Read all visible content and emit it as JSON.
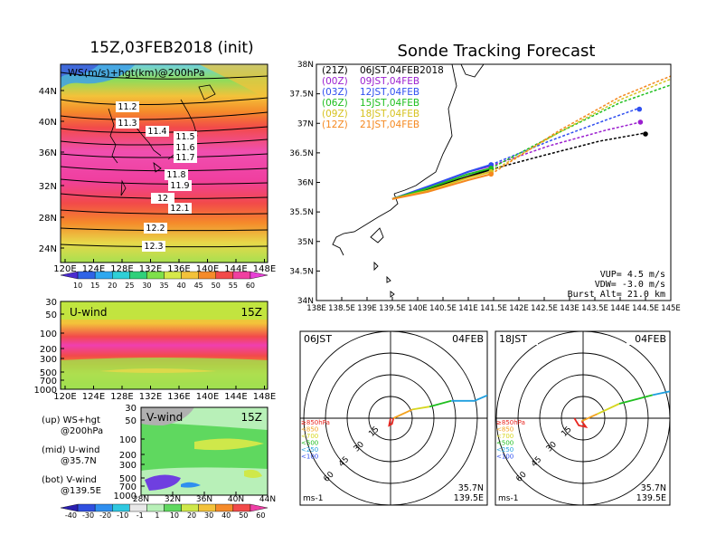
{
  "colors": {
    "ws_scale": [
      "#4b2bd0",
      "#2f63e6",
      "#2fa8ef",
      "#2fcfd6",
      "#2fd07a",
      "#7ee04a",
      "#d6e84a",
      "#f3c23a",
      "#f58a2a",
      "#f24a4a",
      "#f03fa0",
      "#e83fd6"
    ],
    "vwind_scale": [
      "#2a1fb0",
      "#2f4fe0",
      "#2f8fef",
      "#2fc8e0",
      "#e8e8e8",
      "#b8f0b8",
      "#5fd85f",
      "#cfe84a",
      "#f3c23a",
      "#f58a2a",
      "#f24a4a",
      "#ee3fa6"
    ],
    "series": [
      "#000000",
      "#9b1fcf",
      "#2f4ff0",
      "#1fbf1f",
      "#d6c21f",
      "#f5881f"
    ],
    "hodo_levels": [
      "#e8251f",
      "#f3a21f",
      "#d6d61f",
      "#1fbf1f",
      "#1f9fdf",
      "#2f4ff0"
    ]
  },
  "left": {
    "main_title": "15Z,03FEB2018 (init)",
    "ws_panel": {
      "label": "WS(m/s)+hgt(km)@200hPa",
      "lat_ticks": [
        "44N",
        "40N",
        "36N",
        "32N",
        "28N",
        "24N"
      ],
      "lon_ticks": [
        "120E",
        "124E",
        "128E",
        "132E",
        "136E",
        "140E",
        "144E",
        "148E"
      ],
      "contour_labels": [
        "11.2",
        "11.3",
        "11.4",
        "11.5",
        "11.6",
        "11.7",
        "11.8",
        "11.9",
        "12",
        "12.1",
        "12.2",
        "12.3"
      ],
      "colorbar_ticks": [
        "10",
        "15",
        "20",
        "25",
        "30",
        "35",
        "40",
        "45",
        "50",
        "55",
        "60"
      ]
    },
    "u_panel": {
      "label": "U-wind",
      "time": "15Z",
      "p_ticks": [
        "30",
        "50",
        "100",
        "200",
        "300",
        "500",
        "700",
        "1000"
      ],
      "lon_ticks": [
        "120E",
        "124E",
        "128E",
        "132E",
        "136E",
        "140E",
        "144E",
        "148E"
      ]
    },
    "v_panel": {
      "label": "V-wind",
      "time": "15Z",
      "p_ticks": [
        "30",
        "50",
        "100",
        "200",
        "300",
        "500",
        "700",
        "1000"
      ],
      "lat_ticks": [
        "28N",
        "32N",
        "36N",
        "40N",
        "44N"
      ]
    },
    "legend_notes": [
      "(up) WS+hgt",
      "@200hPa",
      "(mid) U-wind",
      "@35.7N",
      "(bot) V-wind",
      "@139.5E"
    ],
    "bottom_colorbar_ticks": [
      "-40",
      "-30",
      "-20",
      "-10",
      "-1",
      "1",
      "10",
      "20",
      "30",
      "40",
      "50",
      "60"
    ]
  },
  "chart_data": [
    {
      "type": "line",
      "title": "Sonde Tracking Forecast",
      "xlim": [
        138,
        145
      ],
      "ylim": [
        34,
        38
      ],
      "x_ticks": [
        "138E",
        "138.5E",
        "139E",
        "139.5E",
        "140E",
        "140.5E",
        "141E",
        "141.5E",
        "142E",
        "142.5E",
        "143E",
        "143.5E",
        "144E",
        "144.5E",
        "145E"
      ],
      "y_ticks": [
        "38N",
        "37.5N",
        "37N",
        "36.5N",
        "36N",
        "35.5N",
        "35N",
        "34.5N",
        "34N"
      ],
      "legend": [
        {
          "code": "(21Z)",
          "time": "06JST,04FEB2018"
        },
        {
          "code": "(00Z)",
          "time": "09JST,04FEB"
        },
        {
          "code": "(03Z)",
          "time": "12JST,04FEB"
        },
        {
          "code": "(06Z)",
          "time": "15JST,04FEB"
        },
        {
          "code": "(09Z)",
          "time": "18JST,04FEB"
        },
        {
          "code": "(12Z)",
          "time": "21JST,04FEB"
        }
      ],
      "series": [
        {
          "name": "(21Z)",
          "ascent": [
            [
              139.5,
              35.72
            ],
            [
              140.2,
              35.88
            ],
            [
              141.0,
              36.1
            ],
            [
              141.45,
              36.22
            ]
          ],
          "descent": [
            [
              141.45,
              36.22
            ],
            [
              142.5,
              36.46
            ],
            [
              143.6,
              36.7
            ],
            [
              144.45,
              36.83
            ]
          ],
          "end": [
            144.5,
            36.82
          ]
        },
        {
          "name": "(00Z)",
          "ascent": [
            [
              139.5,
              35.72
            ],
            [
              140.2,
              35.92
            ],
            [
              141.0,
              36.18
            ],
            [
              141.45,
              36.28
            ]
          ],
          "descent": [
            [
              141.45,
              36.28
            ],
            [
              142.6,
              36.62
            ],
            [
              143.7,
              36.88
            ],
            [
              144.4,
              37.02
            ]
          ],
          "end": [
            144.4,
            37.02
          ]
        },
        {
          "name": "(03Z)",
          "ascent": [
            [
              139.5,
              35.72
            ],
            [
              140.2,
              35.93
            ],
            [
              141.0,
              36.18
            ],
            [
              141.45,
              36.3
            ]
          ],
          "descent": [
            [
              141.45,
              36.3
            ],
            [
              142.6,
              36.7
            ],
            [
              143.7,
              37.05
            ],
            [
              144.35,
              37.25
            ]
          ],
          "end": [
            144.38,
            37.24
          ]
        },
        {
          "name": "(06Z)",
          "ascent": [
            [
              139.5,
              35.72
            ],
            [
              140.2,
              35.9
            ],
            [
              141.0,
              36.14
            ],
            [
              141.45,
              36.24
            ]
          ],
          "descent": [
            [
              141.45,
              36.24
            ],
            [
              142.8,
              36.85
            ],
            [
              144.0,
              37.35
            ],
            [
              145.0,
              37.65
            ]
          ]
        },
        {
          "name": "(09Z)",
          "ascent": [
            [
              139.5,
              35.72
            ],
            [
              140.2,
              35.86
            ],
            [
              141.0,
              36.08
            ],
            [
              141.45,
              36.18
            ]
          ],
          "descent": [
            [
              141.45,
              36.18
            ],
            [
              142.8,
              36.85
            ],
            [
              144.0,
              37.4
            ],
            [
              145.0,
              37.75
            ]
          ]
        },
        {
          "name": "(12Z)",
          "ascent": [
            [
              139.5,
              35.72
            ],
            [
              140.2,
              35.84
            ],
            [
              141.0,
              36.04
            ],
            [
              141.45,
              36.14
            ]
          ],
          "descent": [
            [
              141.45,
              36.14
            ],
            [
              142.8,
              36.88
            ],
            [
              144.0,
              37.45
            ],
            [
              145.0,
              37.8
            ]
          ]
        }
      ],
      "annotations": [
        "VUP= 4.5 m/s",
        "VDW= -3.0 m/s",
        "Burst Alt= 21.0 km"
      ]
    },
    {
      "type": "hodograph",
      "left_label": "06JST",
      "right_label": "04FEB",
      "rings": [
        "15",
        "30",
        "45",
        "60"
      ],
      "levels": [
        "≥850hPa",
        "<850",
        "<700",
        "<500",
        "<250",
        "<100"
      ],
      "unit": "ms-1",
      "location": [
        "35.7N",
        "139.5E"
      ],
      "paths": [
        [
          [
            0,
            0
          ],
          [
            -1,
            -5
          ],
          [
            1,
            -4
          ],
          [
            2,
            0
          ]
        ],
        [
          [
            2,
            0
          ],
          [
            15,
            6
          ]
        ],
        [
          [
            15,
            6
          ],
          [
            27,
            8
          ]
        ],
        [
          [
            27,
            8
          ],
          [
            42,
            12
          ]
        ],
        [
          [
            42,
            12
          ],
          [
            58,
            12
          ],
          [
            72,
            18
          ]
        ],
        [
          [
            72,
            18
          ],
          [
            78,
            22
          ]
        ]
      ]
    },
    {
      "type": "hodograph",
      "left_label": "18JST",
      "right_label": "04FEB",
      "rings": [
        "15",
        "30",
        "45",
        "60"
      ],
      "levels": [
        "≥850hPa",
        "<850",
        "<700",
        "<500",
        "<250",
        "<100"
      ],
      "unit": "ms-1",
      "location": [
        "35.7N",
        "139.5E"
      ],
      "paths": [
        [
          [
            -6,
            0
          ],
          [
            -3,
            -5
          ],
          [
            2,
            -6
          ],
          [
            -1,
            -2
          ]
        ],
        [
          [
            -1,
            -2
          ],
          [
            10,
            3
          ]
        ],
        [
          [
            10,
            3
          ],
          [
            25,
            10
          ]
        ],
        [
          [
            25,
            10
          ],
          [
            48,
            16
          ]
        ],
        [
          [
            48,
            16
          ],
          [
            62,
            19
          ]
        ],
        [
          [
            62,
            19
          ],
          [
            72,
            22
          ]
        ]
      ]
    }
  ]
}
